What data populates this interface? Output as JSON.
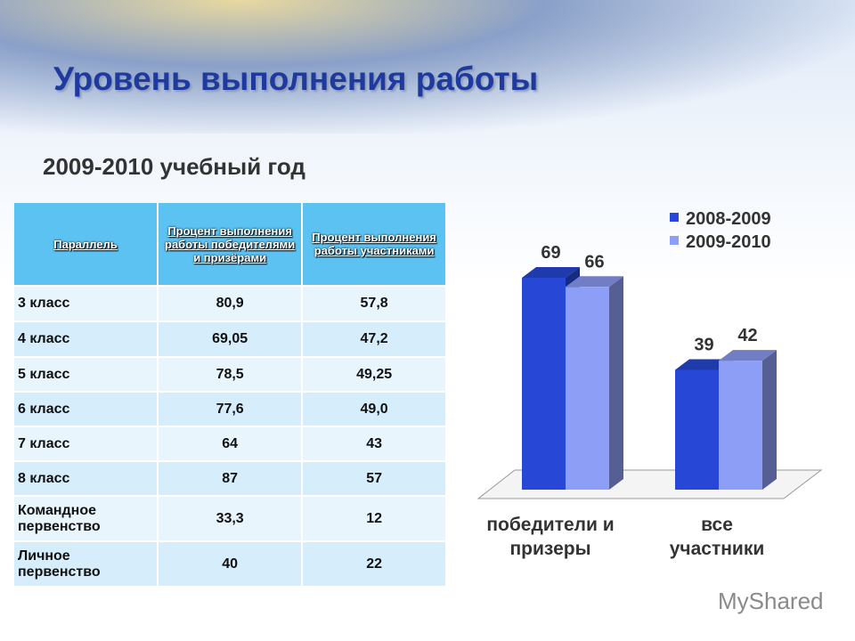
{
  "title": "Уровень выполнения работы",
  "subtitle": "2009-2010 учебный год",
  "table": {
    "header": [
      "Параллель",
      "Процент выполнения работы победителями и призёрами",
      "Процент выполнения работы участниками"
    ],
    "rows": [
      [
        "3 класс",
        "80,9",
        "57,8"
      ],
      [
        "4 класс",
        "69,05",
        "47,2"
      ],
      [
        "5 класс",
        "78,5",
        "49,25"
      ],
      [
        "6 класс",
        "77,6",
        "49,0"
      ],
      [
        "7 класс",
        "64",
        "43"
      ],
      [
        "8 класс",
        "87",
        "57"
      ],
      [
        "Командное первенство",
        "33,3",
        "12"
      ],
      [
        "Личное первенство",
        "40",
        "22"
      ]
    ]
  },
  "chart_data": {
    "type": "bar3d",
    "categories": [
      "победители и призеры",
      "все участники"
    ],
    "series": [
      {
        "name": "2008-2009",
        "color": "#2748d6",
        "values": [
          69,
          39
        ]
      },
      {
        "name": "2009-2010",
        "color": "#8d9ef6",
        "values": [
          66,
          42
        ]
      }
    ],
    "legend": "top-right"
  },
  "watermark": "MyShared"
}
